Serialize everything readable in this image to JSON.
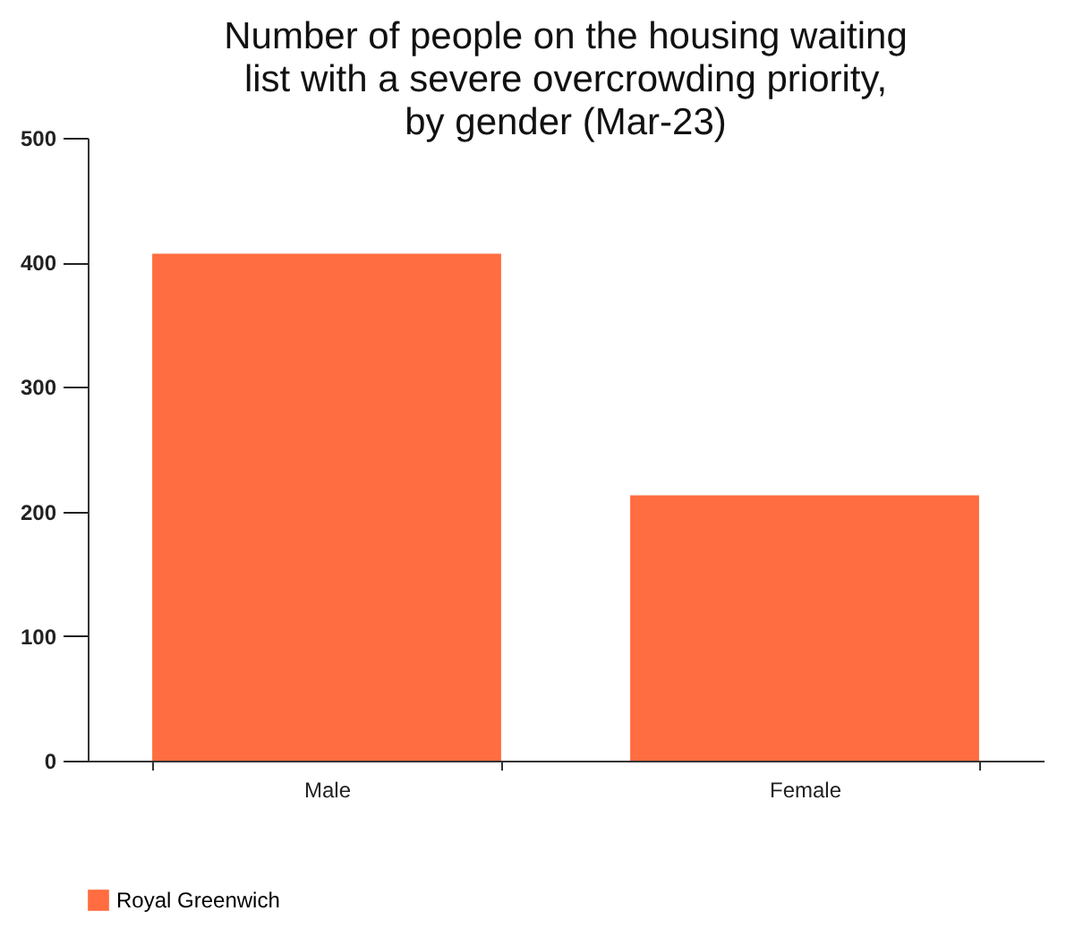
{
  "chart_data": {
    "type": "bar",
    "title": "Number of people on the housing waiting list with a severe overcrowding priority, by gender (Mar-23)",
    "categories": [
      "Male",
      "Female"
    ],
    "series": [
      {
        "name": "Royal Greenwich",
        "color": "#ff6d40",
        "values": [
          407,
          213
        ]
      }
    ],
    "ylim": [
      0,
      500
    ],
    "yticks": [
      0,
      100,
      200,
      300,
      400,
      500
    ],
    "grid": false,
    "legend": "bottom"
  }
}
